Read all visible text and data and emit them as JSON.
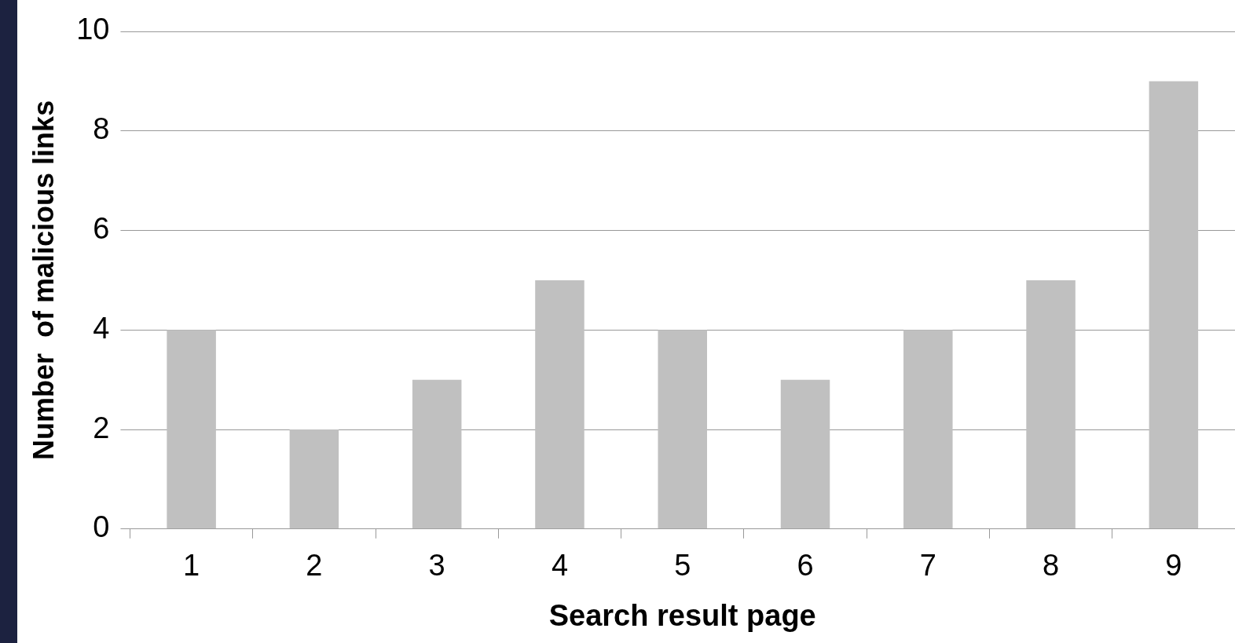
{
  "chart_data": {
    "type": "bar",
    "xlabel": "Search result page",
    "ylabel": "Number  of malicious links",
    "categories": [
      "1",
      "2",
      "3",
      "4",
      "5",
      "6",
      "7",
      "8",
      "9"
    ],
    "values": [
      4,
      2,
      3,
      5,
      4,
      3,
      4,
      5,
      9
    ],
    "color": "#c0c0c0",
    "ylim": [
      0,
      10
    ],
    "yticks": [
      0,
      2,
      4,
      6,
      8,
      10
    ],
    "grid": "y",
    "legend": false
  }
}
